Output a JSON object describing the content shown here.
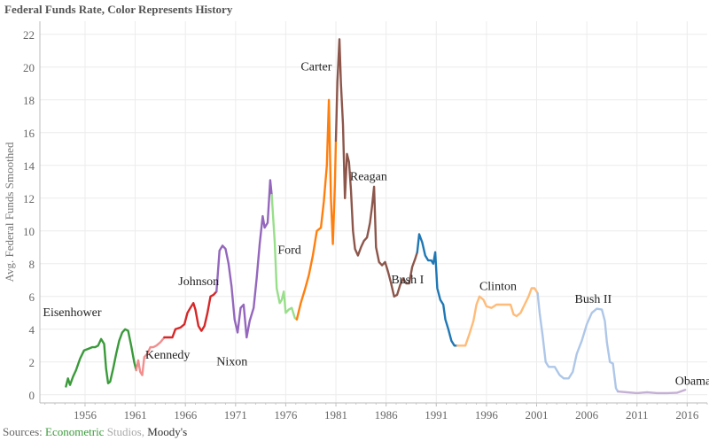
{
  "title": "Federal Funds Rate, Color Represents History",
  "sources": {
    "prefix": "Sources: ",
    "part1": "Econometric",
    "part2": " Studios",
    "sep": ", ",
    "part3": "Moody's"
  },
  "chart_data": {
    "type": "line",
    "title": "Federal Funds Rate, Color Represents History",
    "xlabel": "",
    "ylabel": "Avg. Federal Funds Smoothed",
    "xlim": [
      1951.5,
      2018.0
    ],
    "ylim": [
      -0.5,
      22.8
    ],
    "grid": true,
    "x_ticks": [
      "1956",
      "1961",
      "1966",
      "1971",
      "1976",
      "1981",
      "1986",
      "1991",
      "1996",
      "2001",
      "2006",
      "2011",
      "2016"
    ],
    "y_ticks": [
      "0",
      "2",
      "4",
      "6",
      "8",
      "10",
      "12",
      "14",
      "16",
      "18",
      "20",
      "22"
    ],
    "series": [
      {
        "name": "Eisenhower",
        "color": "#3a9a3a",
        "label_at": [
          1951.8,
          4.8
        ],
        "points": [
          [
            1954.1,
            0.5
          ],
          [
            1954.3,
            1.0
          ],
          [
            1954.5,
            0.6
          ],
          [
            1954.8,
            1.1
          ],
          [
            1955.1,
            1.5
          ],
          [
            1955.5,
            2.2
          ],
          [
            1955.9,
            2.7
          ],
          [
            1956.3,
            2.8
          ],
          [
            1956.7,
            2.9
          ],
          [
            1957.0,
            2.9
          ],
          [
            1957.3,
            3.0
          ],
          [
            1957.6,
            3.4
          ],
          [
            1957.9,
            3.1
          ],
          [
            1958.1,
            1.6
          ],
          [
            1958.3,
            0.7
          ],
          [
            1958.5,
            0.8
          ],
          [
            1958.8,
            1.6
          ],
          [
            1959.1,
            2.5
          ],
          [
            1959.4,
            3.3
          ],
          [
            1959.7,
            3.8
          ],
          [
            1960.0,
            4.0
          ],
          [
            1960.3,
            3.9
          ],
          [
            1960.6,
            3.0
          ],
          [
            1960.9,
            2.0
          ],
          [
            1961.1,
            1.5
          ]
        ]
      },
      {
        "name": "Kennedy",
        "color": "#f28e8e",
        "label_at": [
          1962.0,
          2.2
        ],
        "points": [
          [
            1961.1,
            1.5
          ],
          [
            1961.3,
            2.1
          ],
          [
            1961.5,
            1.4
          ],
          [
            1961.7,
            1.2
          ],
          [
            1961.9,
            2.3
          ],
          [
            1962.2,
            2.5
          ],
          [
            1962.5,
            2.9
          ],
          [
            1962.8,
            2.9
          ],
          [
            1963.1,
            3.0
          ],
          [
            1963.5,
            3.2
          ],
          [
            1963.9,
            3.5
          ]
        ]
      },
      {
        "name": "Johnson",
        "color": "#d62728",
        "label_at": [
          1965.3,
          6.7
        ],
        "points": [
          [
            1963.9,
            3.5
          ],
          [
            1964.3,
            3.5
          ],
          [
            1964.7,
            3.5
          ],
          [
            1965.0,
            4.0
          ],
          [
            1965.5,
            4.1
          ],
          [
            1965.9,
            4.3
          ],
          [
            1966.2,
            5.0
          ],
          [
            1966.5,
            5.3
          ],
          [
            1966.8,
            5.6
          ],
          [
            1967.0,
            5.2
          ],
          [
            1967.3,
            4.2
          ],
          [
            1967.6,
            3.9
          ],
          [
            1967.9,
            4.2
          ],
          [
            1968.2,
            5.0
          ],
          [
            1968.5,
            6.0
          ],
          [
            1968.8,
            6.1
          ],
          [
            1969.1,
            6.3
          ]
        ]
      },
      {
        "name": "Nixon",
        "color": "#9467bd",
        "label_at": [
          1969.1,
          1.8
        ],
        "points": [
          [
            1969.1,
            6.3
          ],
          [
            1969.4,
            8.8
          ],
          [
            1969.7,
            9.1
          ],
          [
            1970.0,
            8.9
          ],
          [
            1970.3,
            8.0
          ],
          [
            1970.6,
            6.6
          ],
          [
            1970.9,
            4.6
          ],
          [
            1971.2,
            3.8
          ],
          [
            1971.5,
            5.3
          ],
          [
            1971.8,
            5.5
          ],
          [
            1972.1,
            3.5
          ],
          [
            1972.4,
            4.5
          ],
          [
            1972.8,
            5.3
          ],
          [
            1973.1,
            7.1
          ],
          [
            1973.4,
            9.2
          ],
          [
            1973.7,
            10.9
          ],
          [
            1973.9,
            10.2
          ],
          [
            1974.2,
            10.5
          ],
          [
            1974.45,
            13.1
          ],
          [
            1974.6,
            12.2
          ]
        ]
      },
      {
        "name": "Ford",
        "color": "#98df8a",
        "label_at": [
          1975.2,
          8.6
        ],
        "points": [
          [
            1974.6,
            12.2
          ],
          [
            1974.9,
            9.3
          ],
          [
            1975.1,
            6.5
          ],
          [
            1975.4,
            5.6
          ],
          [
            1975.6,
            5.8
          ],
          [
            1975.8,
            6.3
          ],
          [
            1976.0,
            5.0
          ],
          [
            1976.3,
            5.2
          ],
          [
            1976.6,
            5.3
          ],
          [
            1976.9,
            4.7
          ],
          [
            1977.1,
            4.6
          ]
        ]
      },
      {
        "name": "Carter",
        "color": "#ff7f0e",
        "label_at": [
          1977.5,
          19.8
        ],
        "points": [
          [
            1977.1,
            4.6
          ],
          [
            1977.5,
            5.6
          ],
          [
            1977.9,
            6.4
          ],
          [
            1978.3,
            7.3
          ],
          [
            1978.7,
            8.5
          ],
          [
            1979.1,
            10.0
          ],
          [
            1979.5,
            10.2
          ],
          [
            1979.8,
            11.8
          ],
          [
            1980.1,
            14.0
          ],
          [
            1980.3,
            18.0
          ],
          [
            1980.5,
            12.0
          ],
          [
            1980.7,
            9.2
          ],
          [
            1980.9,
            12.9
          ],
          [
            1981.0,
            15.5
          ]
        ]
      },
      {
        "name": "Reagan",
        "color": "#8c564b",
        "label_at": [
          1982.4,
          13.1
        ],
        "points": [
          [
            1981.0,
            15.5
          ],
          [
            1981.15,
            19.1
          ],
          [
            1981.35,
            21.7
          ],
          [
            1981.5,
            19.0
          ],
          [
            1981.7,
            16.5
          ],
          [
            1981.9,
            12.0
          ],
          [
            1982.1,
            14.7
          ],
          [
            1982.3,
            14.2
          ],
          [
            1982.5,
            12.5
          ],
          [
            1982.7,
            10.0
          ],
          [
            1982.9,
            8.9
          ],
          [
            1983.2,
            8.5
          ],
          [
            1983.5,
            9.0
          ],
          [
            1983.8,
            9.4
          ],
          [
            1984.1,
            9.6
          ],
          [
            1984.4,
            10.5
          ],
          [
            1984.6,
            11.5
          ],
          [
            1984.8,
            12.7
          ],
          [
            1985.0,
            9.0
          ],
          [
            1985.3,
            8.1
          ],
          [
            1985.6,
            7.9
          ],
          [
            1985.9,
            8.1
          ],
          [
            1986.2,
            7.5
          ],
          [
            1986.5,
            6.8
          ],
          [
            1986.8,
            6.0
          ],
          [
            1987.1,
            6.1
          ],
          [
            1987.4,
            6.7
          ],
          [
            1987.7,
            7.1
          ],
          [
            1988.0,
            6.8
          ],
          [
            1988.3,
            6.8
          ],
          [
            1988.6,
            7.8
          ],
          [
            1988.9,
            8.3
          ],
          [
            1989.1,
            8.7
          ]
        ]
      },
      {
        "name": "Bush I",
        "color": "#1f77b4",
        "label_at": [
          1986.5,
          6.8
        ],
        "points": [
          [
            1989.1,
            8.7
          ],
          [
            1989.3,
            9.8
          ],
          [
            1989.6,
            9.3
          ],
          [
            1989.9,
            8.5
          ],
          [
            1990.2,
            8.2
          ],
          [
            1990.5,
            8.2
          ],
          [
            1990.7,
            8.0
          ],
          [
            1990.9,
            8.7
          ],
          [
            1991.1,
            6.5
          ],
          [
            1991.4,
            5.8
          ],
          [
            1991.7,
            5.5
          ],
          [
            1991.9,
            4.6
          ],
          [
            1992.2,
            4.0
          ],
          [
            1992.5,
            3.3
          ],
          [
            1992.8,
            3.0
          ],
          [
            1993.1,
            3.0
          ]
        ]
      },
      {
        "name": "Clinton",
        "color": "#ffbb78",
        "label_at": [
          1995.3,
          6.4
        ],
        "points": [
          [
            1993.1,
            3.0
          ],
          [
            1993.5,
            3.0
          ],
          [
            1993.9,
            3.0
          ],
          [
            1994.3,
            3.7
          ],
          [
            1994.7,
            4.5
          ],
          [
            1995.0,
            5.5
          ],
          [
            1995.3,
            6.0
          ],
          [
            1995.7,
            5.8
          ],
          [
            1996.0,
            5.4
          ],
          [
            1996.5,
            5.3
          ],
          [
            1997.0,
            5.5
          ],
          [
            1997.5,
            5.5
          ],
          [
            1998.0,
            5.5
          ],
          [
            1998.4,
            5.5
          ],
          [
            1998.7,
            4.9
          ],
          [
            1999.0,
            4.8
          ],
          [
            1999.4,
            5.0
          ],
          [
            1999.8,
            5.5
          ],
          [
            2000.2,
            6.0
          ],
          [
            2000.5,
            6.5
          ],
          [
            2000.8,
            6.5
          ],
          [
            2001.1,
            6.2
          ]
        ]
      },
      {
        "name": "Bush II",
        "color": "#aec7e8",
        "label_at": [
          2004.8,
          5.6
        ],
        "points": [
          [
            2001.1,
            6.2
          ],
          [
            2001.3,
            5.0
          ],
          [
            2001.6,
            3.6
          ],
          [
            2001.9,
            2.0
          ],
          [
            2002.2,
            1.7
          ],
          [
            2002.8,
            1.7
          ],
          [
            2003.3,
            1.2
          ],
          [
            2003.7,
            1.0
          ],
          [
            2004.2,
            1.0
          ],
          [
            2004.6,
            1.4
          ],
          [
            2005.0,
            2.5
          ],
          [
            2005.5,
            3.3
          ],
          [
            2006.0,
            4.3
          ],
          [
            2006.5,
            5.0
          ],
          [
            2007.0,
            5.25
          ],
          [
            2007.5,
            5.2
          ],
          [
            2007.8,
            4.5
          ],
          [
            2008.0,
            3.2
          ],
          [
            2008.3,
            2.0
          ],
          [
            2008.6,
            1.9
          ],
          [
            2008.9,
            0.4
          ],
          [
            2009.1,
            0.2
          ]
        ]
      },
      {
        "name": "Obama",
        "color": "#c5b0d5",
        "label_at": [
          2014.8,
          0.6
        ],
        "points": [
          [
            2009.1,
            0.2
          ],
          [
            2010.0,
            0.15
          ],
          [
            2011.0,
            0.1
          ],
          [
            2012.0,
            0.15
          ],
          [
            2013.0,
            0.1
          ],
          [
            2014.0,
            0.1
          ],
          [
            2015.0,
            0.12
          ],
          [
            2015.8,
            0.3
          ]
        ]
      }
    ]
  }
}
